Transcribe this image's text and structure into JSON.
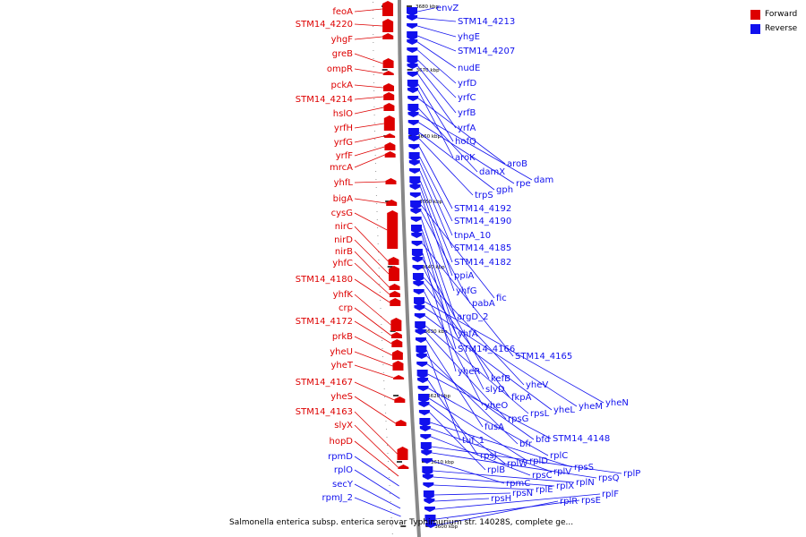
{
  "colors": {
    "forward": "#dd0000",
    "reverse": "#1111ee",
    "backbone": "#888888",
    "tick": "#000000"
  },
  "legend": [
    {
      "label": "Forward",
      "color": "#dd0000"
    },
    {
      "label": "Reverse",
      "color": "#1111ee"
    }
  ],
  "footer": "Salmonella enterica subsp. enterica serovar Typhimurium str. 14028S, complete ge...",
  "ticks": [
    "3680 kbp",
    "3670 kbp",
    "3660 kbp",
    "3650 kbp",
    "3640 kbp",
    "3630 kbp",
    "3620 kbp",
    "3610 kbp",
    "3600 kbp"
  ],
  "forward_genes": [
    "feoA",
    "STM14_4220",
    "yhgF",
    "greB",
    "ompR",
    "pckA",
    "STM14_4214",
    "hslO",
    "yrfH",
    "yrfG",
    "yrfF",
    "mrcA",
    "yhfL",
    "bigA",
    "cysG",
    "nirC",
    "nirD",
    "nirB",
    "yhfC",
    "STM14_4180",
    "yhfK",
    "crp",
    "STM14_4172",
    "prkB",
    "yheU",
    "yheT",
    "STM14_4167",
    "yheS",
    "STM14_4163",
    "slyX",
    "hopD",
    "rpmD",
    "rplO",
    "secY",
    "rpmJ_2"
  ],
  "reverse_genes": [
    "envZ",
    "STM14_4213",
    "yhgE",
    "STM14_4207",
    "nudE",
    "yrfD",
    "yrfC",
    "yrfB",
    "yrfA",
    "hofQ",
    "aroK",
    "aroB",
    "damX",
    "dam",
    "rpe",
    "gph",
    "trpS",
    "STM14_4192",
    "STM14_4190",
    "tnpA_10",
    "STM14_4185",
    "STM14_4182",
    "ppiA",
    "yhfG",
    "fic",
    "pabA",
    "argD_2",
    "yhfA",
    "STM14_4166",
    "STM14_4165",
    "yheR",
    "kefB",
    "slyD",
    "yheV",
    "fkpA",
    "yheO",
    "yheN",
    "yheM",
    "yheL",
    "rpsL",
    "rpsG",
    "fusA",
    "tuf_1",
    "bfr",
    "bfd",
    "STM14_4148",
    "rpsJ",
    "rplC",
    "rplD",
    "rplW",
    "rplB",
    "rpsS",
    "rplV",
    "rpsC",
    "rplP",
    "rpsQ",
    "rpmC",
    "rplN",
    "rplX",
    "rplE",
    "rpsN",
    "rpsH",
    "rplF",
    "rpsE",
    "rplR"
  ]
}
